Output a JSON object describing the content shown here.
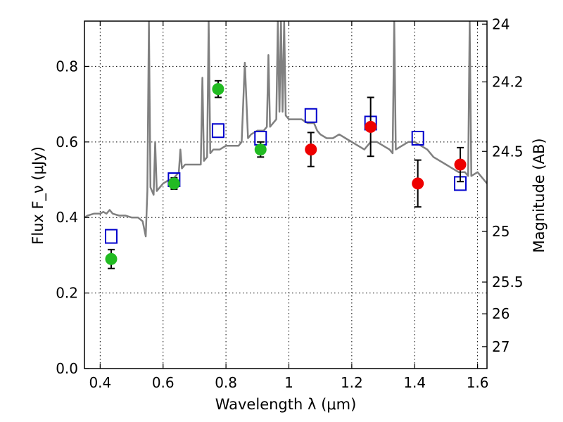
{
  "chart_data": {
    "type": "scatter",
    "xlabel": "Wavelength λ (μm)",
    "ylabel": "Flux F_ν (μJy)",
    "y2label": "Magnitude (AB)",
    "xlim": [
      0.35,
      1.63
    ],
    "ylim": [
      0.0,
      0.92
    ],
    "grid": true,
    "x_ticks": [
      0.4,
      0.6,
      0.8,
      1.0,
      1.2,
      1.4,
      1.6
    ],
    "x_tick_labels": [
      "0.4",
      "0.6",
      "0.8",
      "1",
      "1.2",
      "1.4",
      "1.6"
    ],
    "y_ticks": [
      0.0,
      0.2,
      0.4,
      0.6,
      0.8
    ],
    "y_tick_labels": [
      "0.0",
      "0.2",
      "0.4",
      "0.6",
      "0.8"
    ],
    "y2_ticks": [
      {
        "label": "24",
        "flux": 0.912
      },
      {
        "label": "24.2",
        "flux": 0.759
      },
      {
        "label": "24.5",
        "flux": 0.575
      },
      {
        "label": "25",
        "flux": 0.363
      },
      {
        "label": "25.5",
        "flux": 0.229
      },
      {
        "label": "26",
        "flux": 0.145
      },
      {
        "label": "27",
        "flux": 0.058
      }
    ],
    "series": [
      {
        "kind": "line",
        "color": "#808080",
        "points": [
          [
            0.35,
            0.4
          ],
          [
            0.36,
            0.405
          ],
          [
            0.38,
            0.41
          ],
          [
            0.4,
            0.41
          ],
          [
            0.41,
            0.415
          ],
          [
            0.42,
            0.41
          ],
          [
            0.43,
            0.42
          ],
          [
            0.44,
            0.41
          ],
          [
            0.46,
            0.405
          ],
          [
            0.48,
            0.405
          ],
          [
            0.5,
            0.4
          ],
          [
            0.52,
            0.4
          ],
          [
            0.535,
            0.39
          ],
          [
            0.54,
            0.37
          ],
          [
            0.545,
            0.35
          ],
          [
            0.55,
            0.47
          ],
          [
            0.555,
            0.92
          ],
          [
            0.56,
            0.48
          ],
          [
            0.57,
            0.46
          ],
          [
            0.575,
            0.6
          ],
          [
            0.58,
            0.47
          ],
          [
            0.6,
            0.49
          ],
          [
            0.62,
            0.5
          ],
          [
            0.63,
            0.5
          ],
          [
            0.64,
            0.51
          ],
          [
            0.65,
            0.52
          ],
          [
            0.655,
            0.58
          ],
          [
            0.66,
            0.53
          ],
          [
            0.67,
            0.54
          ],
          [
            0.7,
            0.54
          ],
          [
            0.72,
            0.54
          ],
          [
            0.725,
            0.77
          ],
          [
            0.73,
            0.55
          ],
          [
            0.74,
            0.56
          ],
          [
            0.745,
            0.92
          ],
          [
            0.75,
            0.57
          ],
          [
            0.76,
            0.58
          ],
          [
            0.78,
            0.58
          ],
          [
            0.8,
            0.59
          ],
          [
            0.82,
            0.59
          ],
          [
            0.84,
            0.59
          ],
          [
            0.85,
            0.6
          ],
          [
            0.86,
            0.81
          ],
          [
            0.87,
            0.61
          ],
          [
            0.88,
            0.62
          ],
          [
            0.9,
            0.63
          ],
          [
            0.92,
            0.63
          ],
          [
            0.93,
            0.64
          ],
          [
            0.935,
            0.83
          ],
          [
            0.94,
            0.64
          ],
          [
            0.96,
            0.66
          ],
          [
            0.965,
            0.92
          ],
          [
            0.97,
            0.68
          ],
          [
            0.975,
            0.92
          ],
          [
            0.98,
            0.68
          ],
          [
            0.985,
            0.92
          ],
          [
            0.99,
            0.67
          ],
          [
            1.0,
            0.66
          ],
          [
            1.02,
            0.66
          ],
          [
            1.04,
            0.66
          ],
          [
            1.06,
            0.65
          ],
          [
            1.08,
            0.65
          ],
          [
            1.09,
            0.63
          ],
          [
            1.1,
            0.62
          ],
          [
            1.12,
            0.61
          ],
          [
            1.14,
            0.61
          ],
          [
            1.16,
            0.62
          ],
          [
            1.18,
            0.61
          ],
          [
            1.2,
            0.6
          ],
          [
            1.22,
            0.59
          ],
          [
            1.24,
            0.58
          ],
          [
            1.26,
            0.6
          ],
          [
            1.28,
            0.6
          ],
          [
            1.3,
            0.59
          ],
          [
            1.32,
            0.58
          ],
          [
            1.33,
            0.57
          ],
          [
            1.335,
            0.92
          ],
          [
            1.34,
            0.58
          ],
          [
            1.36,
            0.59
          ],
          [
            1.38,
            0.6
          ],
          [
            1.4,
            0.6
          ],
          [
            1.42,
            0.59
          ],
          [
            1.44,
            0.58
          ],
          [
            1.46,
            0.56
          ],
          [
            1.48,
            0.55
          ],
          [
            1.5,
            0.54
          ],
          [
            1.52,
            0.53
          ],
          [
            1.54,
            0.52
          ],
          [
            1.56,
            0.52
          ],
          [
            1.57,
            0.51
          ],
          [
            1.575,
            0.92
          ],
          [
            1.58,
            0.51
          ],
          [
            1.6,
            0.52
          ],
          [
            1.61,
            0.51
          ],
          [
            1.62,
            0.5
          ],
          [
            1.63,
            0.49
          ]
        ]
      },
      {
        "kind": "points",
        "marker": "open-square",
        "color": "#0000cc",
        "points": [
          [
            0.435,
            0.35
          ],
          [
            0.635,
            0.5
          ],
          [
            0.775,
            0.63
          ],
          [
            0.91,
            0.61
          ],
          [
            1.07,
            0.67
          ],
          [
            1.26,
            0.65
          ],
          [
            1.41,
            0.61
          ],
          [
            1.545,
            0.49
          ]
        ]
      },
      {
        "kind": "points",
        "marker": "filled-circle",
        "color": "#22bb22",
        "points": [
          {
            "x": 0.435,
            "y": 0.29,
            "err": 0.025
          },
          {
            "x": 0.635,
            "y": 0.49,
            "err": 0.015
          },
          {
            "x": 0.775,
            "y": 0.74,
            "err": 0.022
          },
          {
            "x": 0.91,
            "y": 0.58,
            "err": 0.02
          }
        ]
      },
      {
        "kind": "points",
        "marker": "filled-circle",
        "color": "#ee0000",
        "points": [
          {
            "x": 1.07,
            "y": 0.58,
            "err": 0.045
          },
          {
            "x": 1.26,
            "y": 0.64,
            "err": 0.078
          },
          {
            "x": 1.41,
            "y": 0.49,
            "err": 0.062
          },
          {
            "x": 1.545,
            "y": 0.54,
            "err": 0.045
          }
        ]
      }
    ]
  }
}
